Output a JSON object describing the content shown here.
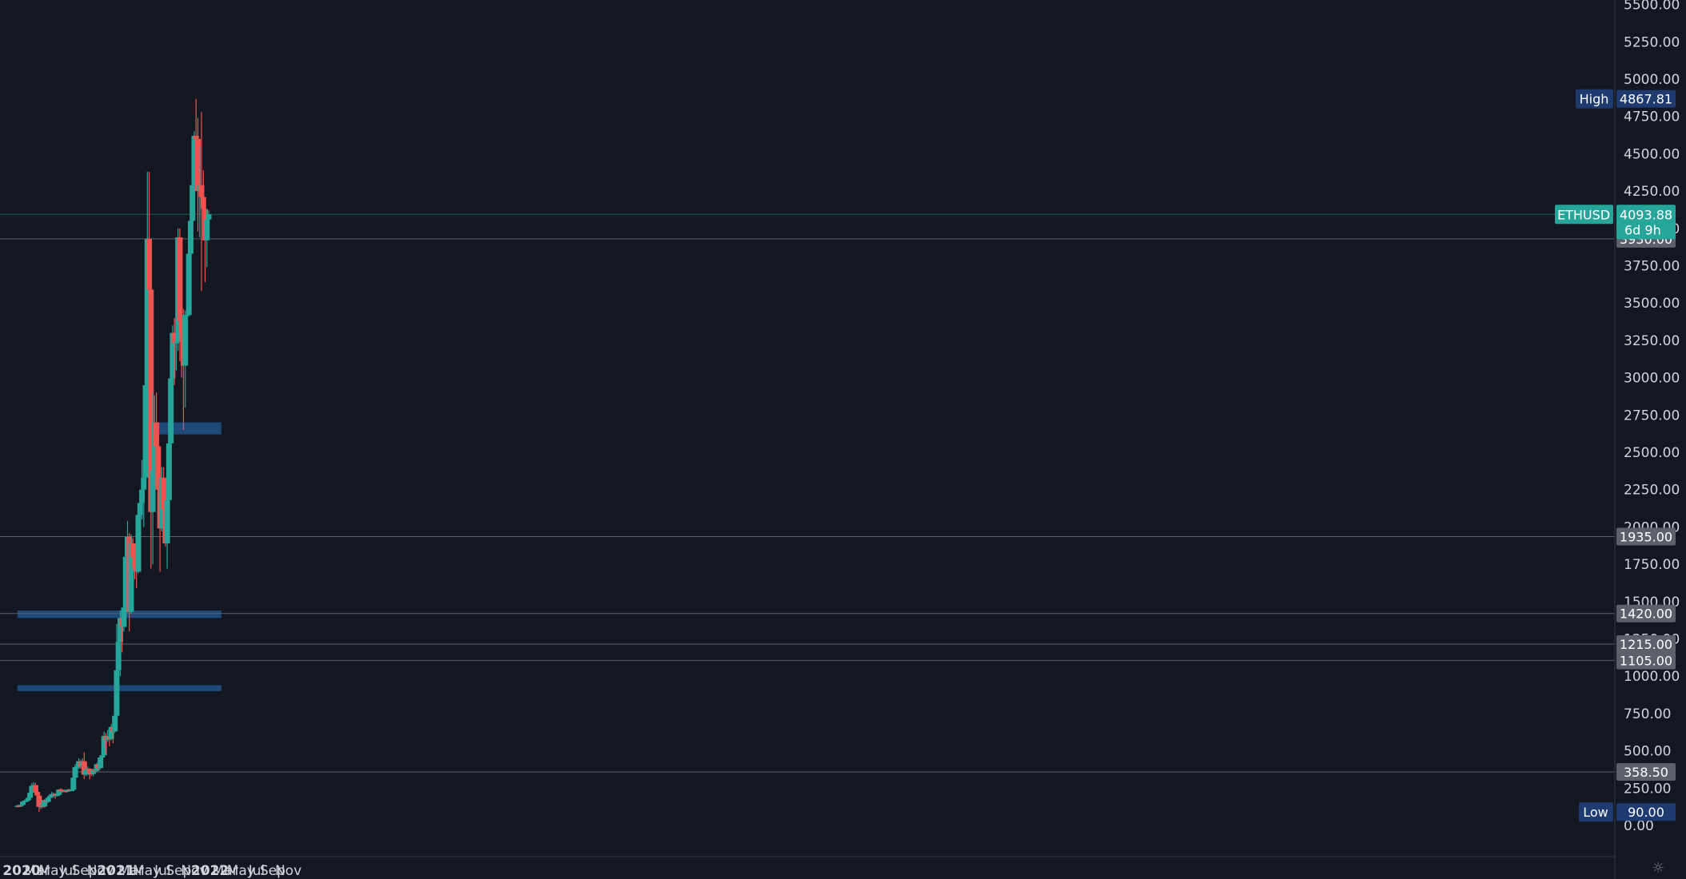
{
  "chart_data": {
    "type": "candlestick",
    "symbol": "ETHUSD",
    "timeframe_note": "6d 9h",
    "last_price": 4093.88,
    "y_ticks": [
      0,
      250,
      500,
      750,
      1000,
      1250,
      1500,
      1750,
      2000,
      2250,
      2500,
      2750,
      3000,
      3250,
      3500,
      3750,
      4000,
      4250,
      4500,
      4750,
      5000,
      5250,
      5500
    ],
    "ylim": [
      0,
      5500
    ],
    "x_ticks": [
      {
        "label": "2020",
        "date": "2020-01-01",
        "bold": true
      },
      {
        "label": "Mar",
        "date": "2020-03-01",
        "bold": false
      },
      {
        "label": "May",
        "date": "2020-05-01",
        "bold": false
      },
      {
        "label": "Jul",
        "date": "2020-07-01",
        "bold": false
      },
      {
        "label": "Sep",
        "date": "2020-09-01",
        "bold": false
      },
      {
        "label": "Nov",
        "date": "2020-11-01",
        "bold": false
      },
      {
        "label": "2021",
        "date": "2021-01-01",
        "bold": true
      },
      {
        "label": "Mar",
        "date": "2021-03-01",
        "bold": false
      },
      {
        "label": "May",
        "date": "2021-05-01",
        "bold": false
      },
      {
        "label": "Jul",
        "date": "2021-07-01",
        "bold": false
      },
      {
        "label": "Sep",
        "date": "2021-09-01",
        "bold": false
      },
      {
        "label": "Nov",
        "date": "2021-11-01",
        "bold": false
      },
      {
        "label": "2022",
        "date": "2022-01-01",
        "bold": true
      },
      {
        "label": "Mar",
        "date": "2022-03-01",
        "bold": false
      },
      {
        "label": "May",
        "date": "2022-05-01",
        "bold": false
      },
      {
        "label": "Jul",
        "date": "2022-07-01",
        "bold": false
      },
      {
        "label": "Sep",
        "date": "2022-09-01",
        "bold": false
      },
      {
        "label": "Nov",
        "date": "2022-11-01",
        "bold": false
      }
    ],
    "high": {
      "label": "High",
      "value": "4867.81",
      "price": 4867.81
    },
    "low": {
      "label": "Low",
      "value": "90.00",
      "price": 90
    },
    "level_lines": [
      3930,
      1935,
      1420,
      1215,
      1105,
      358.5
    ],
    "price_labels": [
      {
        "text": "3930.00",
        "price": 3930
      },
      {
        "text": "1935.00",
        "price": 1935
      },
      {
        "text": "1420.00",
        "price": 1420
      },
      {
        "text": "1215.00",
        "price": 1215
      },
      {
        "text": "1105.00",
        "price": 1105
      },
      {
        "text": "358.50",
        "price": 358.5
      }
    ],
    "zones": [
      {
        "start": "2021-04-26",
        "end": "2022-02-14",
        "from": 2620,
        "to": 2700
      },
      {
        "start": "2019-12-16",
        "end": "2022-02-14",
        "from": 1390,
        "to": 1440
      },
      {
        "start": "2019-12-16",
        "end": "2022-02-14",
        "from": 900,
        "to": 940
      }
    ],
    "candles": [
      {
        "date": "2019-12-16",
        "o": 128,
        "h": 140,
        "l": 120,
        "c": 132
      },
      {
        "date": "2019-12-23",
        "o": 132,
        "h": 138,
        "l": 124,
        "c": 130
      },
      {
        "date": "2019-12-30",
        "o": 130,
        "h": 145,
        "l": 126,
        "c": 138
      },
      {
        "date": "2020-01-06",
        "o": 138,
        "h": 165,
        "l": 135,
        "c": 160
      },
      {
        "date": "2020-01-13",
        "o": 160,
        "h": 175,
        "l": 150,
        "c": 165
      },
      {
        "date": "2020-01-20",
        "o": 165,
        "h": 175,
        "l": 155,
        "c": 168
      },
      {
        "date": "2020-01-27",
        "o": 168,
        "h": 190,
        "l": 162,
        "c": 185
      },
      {
        "date": "2020-02-03",
        "o": 185,
        "h": 225,
        "l": 180,
        "c": 220
      },
      {
        "date": "2020-02-10",
        "o": 220,
        "h": 285,
        "l": 215,
        "c": 265
      },
      {
        "date": "2020-02-17",
        "o": 265,
        "h": 290,
        "l": 240,
        "c": 270
      },
      {
        "date": "2020-02-24",
        "o": 270,
        "h": 285,
        "l": 210,
        "c": 225
      },
      {
        "date": "2020-03-02",
        "o": 225,
        "h": 250,
        "l": 190,
        "c": 200
      },
      {
        "date": "2020-03-09",
        "o": 200,
        "h": 210,
        "l": 90,
        "c": 125
      },
      {
        "date": "2020-03-16",
        "o": 125,
        "h": 150,
        "l": 110,
        "c": 130
      },
      {
        "date": "2020-03-23",
        "o": 130,
        "h": 150,
        "l": 120,
        "c": 128
      },
      {
        "date": "2020-03-30",
        "o": 128,
        "h": 175,
        "l": 125,
        "c": 170
      },
      {
        "date": "2020-04-06",
        "o": 170,
        "h": 180,
        "l": 150,
        "c": 158
      },
      {
        "date": "2020-04-13",
        "o": 158,
        "h": 200,
        "l": 150,
        "c": 185
      },
      {
        "date": "2020-04-20",
        "o": 185,
        "h": 200,
        "l": 170,
        "c": 195
      },
      {
        "date": "2020-04-27",
        "o": 195,
        "h": 225,
        "l": 190,
        "c": 210
      },
      {
        "date": "2020-05-04",
        "o": 210,
        "h": 220,
        "l": 185,
        "c": 212
      },
      {
        "date": "2020-05-11",
        "o": 212,
        "h": 215,
        "l": 180,
        "c": 200
      },
      {
        "date": "2020-05-18",
        "o": 200,
        "h": 215,
        "l": 195,
        "c": 205
      },
      {
        "date": "2020-05-25",
        "o": 205,
        "h": 245,
        "l": 200,
        "c": 240
      },
      {
        "date": "2020-06-01",
        "o": 240,
        "h": 250,
        "l": 225,
        "c": 235
      },
      {
        "date": "2020-06-08",
        "o": 235,
        "h": 245,
        "l": 220,
        "c": 230
      },
      {
        "date": "2020-06-15",
        "o": 230,
        "h": 240,
        "l": 222,
        "c": 232
      },
      {
        "date": "2020-06-22",
        "o": 232,
        "h": 238,
        "l": 220,
        "c": 228
      },
      {
        "date": "2020-06-29",
        "o": 228,
        "h": 245,
        "l": 225,
        "c": 240
      },
      {
        "date": "2020-07-06",
        "o": 240,
        "h": 245,
        "l": 230,
        "c": 235
      },
      {
        "date": "2020-07-13",
        "o": 235,
        "h": 245,
        "l": 230,
        "c": 238
      },
      {
        "date": "2020-07-20",
        "o": 238,
        "h": 330,
        "l": 235,
        "c": 320
      },
      {
        "date": "2020-07-27",
        "o": 320,
        "h": 410,
        "l": 310,
        "c": 390
      },
      {
        "date": "2020-08-03",
        "o": 390,
        "h": 420,
        "l": 360,
        "c": 395
      },
      {
        "date": "2020-08-10",
        "o": 395,
        "h": 450,
        "l": 380,
        "c": 430
      },
      {
        "date": "2020-08-17",
        "o": 430,
        "h": 440,
        "l": 380,
        "c": 395
      },
      {
        "date": "2020-08-24",
        "o": 395,
        "h": 450,
        "l": 370,
        "c": 430
      },
      {
        "date": "2020-08-31",
        "o": 430,
        "h": 490,
        "l": 310,
        "c": 340
      },
      {
        "date": "2020-09-07",
        "o": 340,
        "h": 390,
        "l": 330,
        "c": 370
      },
      {
        "date": "2020-09-14",
        "o": 370,
        "h": 395,
        "l": 360,
        "c": 380
      },
      {
        "date": "2020-09-21",
        "o": 380,
        "h": 385,
        "l": 310,
        "c": 350
      },
      {
        "date": "2020-09-28",
        "o": 350,
        "h": 370,
        "l": 330,
        "c": 345
      },
      {
        "date": "2020-10-05",
        "o": 345,
        "h": 380,
        "l": 330,
        "c": 372
      },
      {
        "date": "2020-10-12",
        "o": 372,
        "h": 380,
        "l": 360,
        "c": 365
      },
      {
        "date": "2020-10-19",
        "o": 365,
        "h": 420,
        "l": 355,
        "c": 410
      },
      {
        "date": "2020-10-26",
        "o": 410,
        "h": 420,
        "l": 370,
        "c": 385
      },
      {
        "date": "2020-11-02",
        "o": 385,
        "h": 470,
        "l": 375,
        "c": 455
      },
      {
        "date": "2020-11-09",
        "o": 455,
        "h": 480,
        "l": 440,
        "c": 470
      },
      {
        "date": "2020-11-16",
        "o": 470,
        "h": 630,
        "l": 455,
        "c": 600
      },
      {
        "date": "2020-11-23",
        "o": 600,
        "h": 620,
        "l": 480,
        "c": 575
      },
      {
        "date": "2020-11-30",
        "o": 575,
        "h": 640,
        "l": 560,
        "c": 595
      },
      {
        "date": "2020-12-07",
        "o": 595,
        "h": 600,
        "l": 530,
        "c": 580
      },
      {
        "date": "2020-12-14",
        "o": 580,
        "h": 680,
        "l": 570,
        "c": 660
      },
      {
        "date": "2020-12-21",
        "o": 660,
        "h": 665,
        "l": 550,
        "c": 630
      },
      {
        "date": "2020-12-28",
        "o": 630,
        "h": 760,
        "l": 620,
        "c": 735
      },
      {
        "date": "2021-01-04",
        "o": 735,
        "h": 1350,
        "l": 725,
        "c": 1040
      },
      {
        "date": "2021-01-11",
        "o": 1040,
        "h": 1270,
        "l": 900,
        "c": 1230
      },
      {
        "date": "2021-01-18",
        "o": 1230,
        "h": 1440,
        "l": 1000,
        "c": 1390
      },
      {
        "date": "2021-01-25",
        "o": 1390,
        "h": 1450,
        "l": 1160,
        "c": 1330
      },
      {
        "date": "2021-02-01",
        "o": 1330,
        "h": 1500,
        "l": 1300,
        "c": 1460
      },
      {
        "date": "2021-02-08",
        "o": 1460,
        "h": 1850,
        "l": 1450,
        "c": 1800
      },
      {
        "date": "2021-02-15",
        "o": 1800,
        "h": 2040,
        "l": 1780,
        "c": 1935
      },
      {
        "date": "2021-02-22",
        "o": 1935,
        "h": 1960,
        "l": 1300,
        "c": 1430
      },
      {
        "date": "2021-03-01",
        "o": 1430,
        "h": 1950,
        "l": 1420,
        "c": 1890
      },
      {
        "date": "2021-03-08",
        "o": 1890,
        "h": 1925,
        "l": 1710,
        "c": 1795
      },
      {
        "date": "2021-03-15",
        "o": 1795,
        "h": 1870,
        "l": 1650,
        "c": 1730
      },
      {
        "date": "2021-03-22",
        "o": 1730,
        "h": 1840,
        "l": 1590,
        "c": 1700
      },
      {
        "date": "2021-03-29",
        "o": 1700,
        "h": 2100,
        "l": 1690,
        "c": 2080
      },
      {
        "date": "2021-04-05",
        "o": 2080,
        "h": 2210,
        "l": 1940,
        "c": 2160
      },
      {
        "date": "2021-04-12",
        "o": 2160,
        "h": 2450,
        "l": 2050,
        "c": 2250
      },
      {
        "date": "2021-04-19",
        "o": 2250,
        "h": 2530,
        "l": 2000,
        "c": 2330
      },
      {
        "date": "2021-04-26",
        "o": 2330,
        "h": 2950,
        "l": 2300,
        "c": 2950
      },
      {
        "date": "2021-05-03",
        "o": 2950,
        "h": 4380,
        "l": 2930,
        "c": 3930
      },
      {
        "date": "2021-05-10",
        "o": 3930,
        "h": 4380,
        "l": 3300,
        "c": 3590
      },
      {
        "date": "2021-05-17",
        "o": 3590,
        "h": 3600,
        "l": 1720,
        "c": 2100
      },
      {
        "date": "2021-05-24",
        "o": 2100,
        "h": 2900,
        "l": 1750,
        "c": 2380
      },
      {
        "date": "2021-05-31",
        "o": 2380,
        "h": 2880,
        "l": 2380,
        "c": 2700
      },
      {
        "date": "2021-06-07",
        "o": 2700,
        "h": 2900,
        "l": 2350,
        "c": 2540
      },
      {
        "date": "2021-06-14",
        "o": 2540,
        "h": 2580,
        "l": 2060,
        "c": 2250
      },
      {
        "date": "2021-06-21",
        "o": 2250,
        "h": 2270,
        "l": 1700,
        "c": 1990
      },
      {
        "date": "2021-06-28",
        "o": 1990,
        "h": 2400,
        "l": 1970,
        "c": 2330
      },
      {
        "date": "2021-07-05",
        "o": 2330,
        "h": 2400,
        "l": 2070,
        "c": 2120
      },
      {
        "date": "2021-07-12",
        "o": 2120,
        "h": 2200,
        "l": 1870,
        "c": 1890
      },
      {
        "date": "2021-07-19",
        "o": 1890,
        "h": 2200,
        "l": 1720,
        "c": 2180
      },
      {
        "date": "2021-07-26",
        "o": 2180,
        "h": 2700,
        "l": 2170,
        "c": 2560
      },
      {
        "date": "2021-08-02",
        "o": 2560,
        "h": 3000,
        "l": 2480,
        "c": 2995
      },
      {
        "date": "2021-08-09",
        "o": 2995,
        "h": 3350,
        "l": 2980,
        "c": 3300
      },
      {
        "date": "2021-08-16",
        "o": 3300,
        "h": 3400,
        "l": 2950,
        "c": 3230
      },
      {
        "date": "2021-08-23",
        "o": 3230,
        "h": 3370,
        "l": 3050,
        "c": 3240
      },
      {
        "date": "2021-08-30",
        "o": 3240,
        "h": 4000,
        "l": 3180,
        "c": 3940
      },
      {
        "date": "2021-09-06",
        "o": 3940,
        "h": 4000,
        "l": 3110,
        "c": 3380
      },
      {
        "date": "2021-09-13",
        "o": 3380,
        "h": 3500,
        "l": 3000,
        "c": 3300
      },
      {
        "date": "2021-09-20",
        "o": 3300,
        "h": 3460,
        "l": 2650,
        "c": 3080
      },
      {
        "date": "2021-09-27",
        "o": 3080,
        "h": 3450,
        "l": 2800,
        "c": 3420
      },
      {
        "date": "2021-10-04",
        "o": 3420,
        "h": 3640,
        "l": 3300,
        "c": 3420
      },
      {
        "date": "2021-10-11",
        "o": 3420,
        "h": 3850,
        "l": 3420,
        "c": 3830
      },
      {
        "date": "2021-10-18",
        "o": 3830,
        "h": 4050,
        "l": 3810,
        "c": 4050
      },
      {
        "date": "2021-10-25",
        "o": 4050,
        "h": 4300,
        "l": 3900,
        "c": 4290
      },
      {
        "date": "2021-11-01",
        "o": 4290,
        "h": 4650,
        "l": 4200,
        "c": 4620
      },
      {
        "date": "2021-11-08",
        "o": 4620,
        "h": 4867.81,
        "l": 4550,
        "c": 4600
      },
      {
        "date": "2021-11-15",
        "o": 4600,
        "h": 4740,
        "l": 3980,
        "c": 4250
      },
      {
        "date": "2021-11-22",
        "o": 4250,
        "h": 4550,
        "l": 3940,
        "c": 4290
      },
      {
        "date": "2021-11-29",
        "o": 4290,
        "h": 4780,
        "l": 3580,
        "c": 4210
      },
      {
        "date": "2021-12-06",
        "o": 4210,
        "h": 4390,
        "l": 3950,
        "c": 4130
      },
      {
        "date": "2021-12-13",
        "o": 4130,
        "h": 4210,
        "l": 3640,
        "c": 3920
      },
      {
        "date": "2021-12-20",
        "o": 3920,
        "h": 4130,
        "l": 3740,
        "c": 4060
      },
      {
        "date": "2021-12-27",
        "o": 4060,
        "h": 4120,
        "l": 4060,
        "c": 4093.88
      }
    ]
  },
  "colors": {
    "background": "#131722",
    "up": "#26a69a",
    "down": "#ef5350",
    "zone": "#1e4a7a",
    "level_line": "#5d606b",
    "last_price_line": "#26a69a",
    "text": "#d1d4dc",
    "label_gray": "#5d606b",
    "label_blue": "#1e3a6e",
    "label_teal": "#26a69a"
  },
  "icons": {
    "settings": "gear-icon"
  },
  "settings_glyph": "☼"
}
